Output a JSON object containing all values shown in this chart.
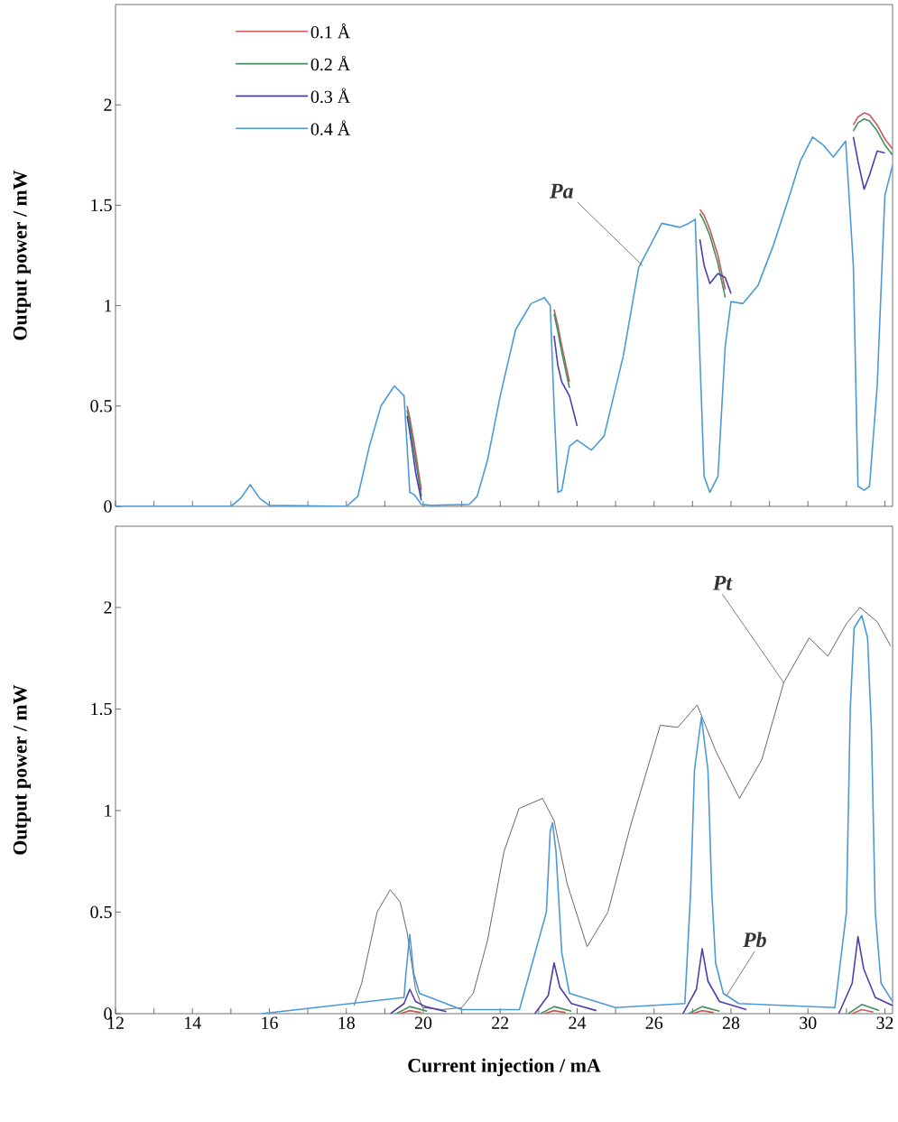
{
  "chart_data": [
    {
      "type": "line",
      "ylabel": "Output power / mW",
      "xlim": [
        12,
        32.2
      ],
      "ylim": [
        0,
        2.5
      ],
      "xticks": [
        12,
        {
          "value": 13,
          "label": null
        },
        14,
        {
          "value": 15,
          "label": null
        },
        16,
        {
          "value": 17,
          "label": null
        },
        18,
        {
          "value": 19,
          "label": null
        },
        20,
        {
          "value": 21,
          "label": null
        },
        22,
        {
          "value": 23,
          "label": null
        },
        24,
        {
          "value": 25,
          "label": null
        },
        26,
        {
          "value": 27,
          "label": null
        },
        28,
        {
          "value": 29,
          "label": null
        },
        30,
        {
          "value": 31,
          "label": null
        },
        32
      ],
      "yticks": [
        0,
        0.5,
        1,
        1.5,
        2
      ],
      "tick_labels": "y",
      "legend": "top left",
      "grid": false,
      "annotations": [
        {
          "text": "Pa",
          "x": 25.7,
          "y": 1.2
        }
      ],
      "x": [
        12,
        15.0,
        15.25,
        15.5,
        15.75,
        16.0,
        18.0,
        18.3,
        18.6,
        18.9,
        19.25,
        19.5,
        19.58,
        19.65,
        19.75,
        19.8,
        19.95,
        20.2,
        21.2,
        21.4,
        21.67,
        22.0,
        22.4,
        22.8,
        23.15,
        23.3,
        23.4,
        23.5,
        23.6,
        23.8,
        24.0,
        24.37,
        24.7,
        25.2,
        25.6,
        26.2,
        26.67,
        26.9,
        27.07,
        27.19,
        27.3,
        27.45,
        27.66,
        27.85,
        28.0,
        28.31,
        28.7,
        29.1,
        29.49,
        29.8,
        30.12,
        30.4,
        30.66,
        30.98,
        31.18,
        31.3,
        31.46,
        31.6,
        31.8,
        32.0,
        32.2
      ],
      "series": [
        {
          "name": "0.1 Å",
          "color": "#c8585a",
          "values": [
            null,
            null,
            null,
            null,
            null,
            null,
            null,
            null,
            null,
            null,
            null,
            null,
            0.5,
            0.44,
            0.33,
            0.27,
            0.08,
            null,
            null,
            null,
            null,
            null,
            null,
            null,
            null,
            null,
            0.98,
            0.9,
            0.8,
            0.62,
            null,
            null,
            null,
            null,
            null,
            null,
            null,
            null,
            null,
            1.48,
            1.45,
            1.38,
            1.25,
            1.08,
            null,
            null,
            null,
            null,
            null,
            null,
            null,
            null,
            null,
            null,
            1.9,
            1.94,
            1.96,
            1.95,
            1.9,
            1.83,
            1.78
          ]
        },
        {
          "name": "0.2 Å",
          "color": "#3f8f5f",
          "values": [
            null,
            null,
            null,
            null,
            null,
            null,
            null,
            null,
            null,
            null,
            null,
            null,
            0.48,
            0.41,
            0.29,
            0.23,
            0.05,
            null,
            null,
            null,
            null,
            null,
            null,
            null,
            null,
            null,
            0.96,
            0.87,
            0.77,
            0.59,
            null,
            null,
            null,
            null,
            null,
            null,
            null,
            null,
            null,
            1.46,
            1.42,
            1.35,
            1.21,
            1.04,
            null,
            null,
            null,
            null,
            null,
            null,
            null,
            null,
            null,
            null,
            1.87,
            1.91,
            1.93,
            1.92,
            1.87,
            1.8,
            1.75
          ]
        },
        {
          "name": "0.3 Å",
          "color": "#4b3fb0",
          "values": [
            null,
            null,
            null,
            null,
            null,
            null,
            null,
            null,
            null,
            null,
            null,
            null,
            0.45,
            0.37,
            0.24,
            0.17,
            0.03,
            null,
            null,
            null,
            null,
            null,
            null,
            null,
            null,
            null,
            0.85,
            0.7,
            0.62,
            0.55,
            0.4,
            null,
            null,
            null,
            null,
            null,
            null,
            null,
            null,
            1.33,
            1.2,
            1.11,
            1.16,
            1.14,
            1.06,
            null,
            null,
            null,
            null,
            null,
            null,
            null,
            null,
            null,
            1.84,
            1.72,
            1.58,
            1.65,
            1.77,
            1.76,
            null
          ]
        },
        {
          "name": "0.4 Å",
          "color": "#4a9ad8",
          "values": [
            0,
            0,
            0.04,
            0.108,
            0.04,
            0.005,
            0,
            0.05,
            0.3,
            0.5,
            0.6,
            0.55,
            0.3,
            0.07,
            0.06,
            0.05,
            0.01,
            0.005,
            0.01,
            0.05,
            0.23,
            0.55,
            0.88,
            1.01,
            1.04,
            1.0,
            0.5,
            0.07,
            0.08,
            0.3,
            0.33,
            0.28,
            0.35,
            0.75,
            1.19,
            1.41,
            1.39,
            1.41,
            1.43,
            0.75,
            0.15,
            0.07,
            0.15,
            0.8,
            1.02,
            1.01,
            1.1,
            1.3,
            1.53,
            1.72,
            1.84,
            1.8,
            1.74,
            1.82,
            1.2,
            0.1,
            0.08,
            0.1,
            0.6,
            1.55,
            1.7
          ]
        }
      ]
    },
    {
      "type": "line",
      "xlabel": "Current injection / mA",
      "ylabel": "Output power / mW",
      "xlim": [
        12,
        32.2
      ],
      "ylim": [
        0,
        2.4
      ],
      "xticks": [
        12,
        {
          "value": 13,
          "label": null
        },
        14,
        {
          "value": 15,
          "label": null
        },
        16,
        {
          "value": 17,
          "label": null
        },
        18,
        {
          "value": 19,
          "label": null
        },
        20,
        {
          "value": 21,
          "label": null
        },
        22,
        {
          "value": 23,
          "label": null
        },
        24,
        {
          "value": 25,
          "label": null
        },
        26,
        {
          "value": 27,
          "label": null
        },
        28,
        {
          "value": 29,
          "label": null
        },
        30,
        {
          "value": 31,
          "label": null
        },
        32
      ],
      "yticks": [
        0,
        0.5,
        1,
        1.5,
        2
      ],
      "legend": false,
      "grid": false,
      "annotations": [
        {
          "text": "Pt",
          "x": 29.37,
          "y": 1.63
        },
        {
          "text": "Pb",
          "x": 27.89,
          "y": 0.09
        }
      ],
      "series": [
        {
          "color": "#555555",
          "x": [
            18.2,
            18.4,
            18.8,
            19.14,
            19.4,
            19.58,
            19.8,
            19.98,
            20.5,
            21.0,
            21.3,
            21.67,
            22.1,
            22.49,
            23.1,
            23.4,
            23.74,
            24.26,
            24.8,
            25.38,
            26.16,
            26.62,
            27.12,
            27.61,
            28.22,
            28.8,
            29.37,
            30.03,
            30.52,
            31.0,
            31.35,
            31.8,
            32.15
          ],
          "values": [
            0.04,
            0.15,
            0.5,
            0.61,
            0.55,
            0.4,
            0.12,
            0.03,
            0.02,
            0.03,
            0.1,
            0.36,
            0.8,
            1.01,
            1.06,
            0.95,
            0.64,
            0.33,
            0.5,
            0.92,
            1.42,
            1.41,
            1.52,
            1.29,
            1.06,
            1.25,
            1.63,
            1.85,
            1.76,
            1.92,
            2.0,
            1.93,
            1.81
          ]
        },
        {
          "color": "#4a9ad8",
          "x": [
            15.8,
            19.5,
            19.55,
            19.65,
            19.75,
            19.9,
            21.0,
            22.5,
            23.2,
            23.3,
            23.36,
            23.45,
            23.6,
            23.8,
            25.0,
            26.8,
            26.95,
            27.05,
            27.23,
            27.4,
            27.5,
            27.6,
            27.8,
            28.2,
            30.7,
            31.0,
            31.1,
            31.2,
            31.4,
            31.55,
            31.65,
            31.75,
            31.9,
            32.2
          ],
          "values": [
            0,
            0.08,
            0.2,
            0.39,
            0.2,
            0.1,
            0.02,
            0.02,
            0.5,
            0.9,
            0.94,
            0.8,
            0.3,
            0.1,
            0.03,
            0.05,
            0.6,
            1.2,
            1.46,
            1.2,
            0.6,
            0.25,
            0.1,
            0.05,
            0.03,
            0.5,
            1.5,
            1.9,
            1.96,
            1.85,
            1.4,
            0.5,
            0.15,
            0.06
          ]
        },
        {
          "color": "#4b3fb0",
          "x": [
            19.15,
            19.5,
            19.65,
            19.8,
            20.05,
            20.6,
            21.5,
            22.9,
            23.25,
            23.4,
            23.55,
            23.85,
            24.5,
            25.5,
            26.75,
            27.1,
            27.25,
            27.4,
            27.7,
            28.4,
            29.5,
            30.8,
            31.15,
            31.3,
            31.45,
            31.75,
            32.2
          ],
          "values": [
            0,
            0.05,
            0.12,
            0.06,
            0.035,
            0.01,
            null,
            0,
            0.09,
            0.25,
            0.13,
            0.05,
            0.015,
            null,
            0,
            0.12,
            0.32,
            0.16,
            0.06,
            0.02,
            null,
            0,
            0.15,
            0.38,
            0.22,
            0.08,
            0.04
          ]
        },
        {
          "color": "#3f8f5f",
          "x": [
            19.3,
            19.65,
            20.1,
            21.5,
            23.05,
            23.4,
            23.85,
            25.5,
            26.9,
            27.25,
            27.7,
            29.5,
            31.05,
            31.4,
            31.85
          ],
          "values": [
            0,
            0.035,
            0.012,
            null,
            0,
            0.035,
            0.012,
            null,
            0,
            0.035,
            0.012,
            null,
            0,
            0.045,
            0.015
          ]
        },
        {
          "color": "#c8585a",
          "x": [
            19.4,
            19.65,
            19.95,
            21.5,
            23.15,
            23.4,
            23.7,
            25.5,
            27.0,
            27.25,
            27.55,
            29.5,
            31.15,
            31.4,
            31.7
          ],
          "values": [
            0,
            0.015,
            0.005,
            null,
            0,
            0.015,
            0.005,
            null,
            0,
            0.015,
            0.005,
            null,
            0,
            0.02,
            0.008
          ]
        }
      ]
    }
  ]
}
